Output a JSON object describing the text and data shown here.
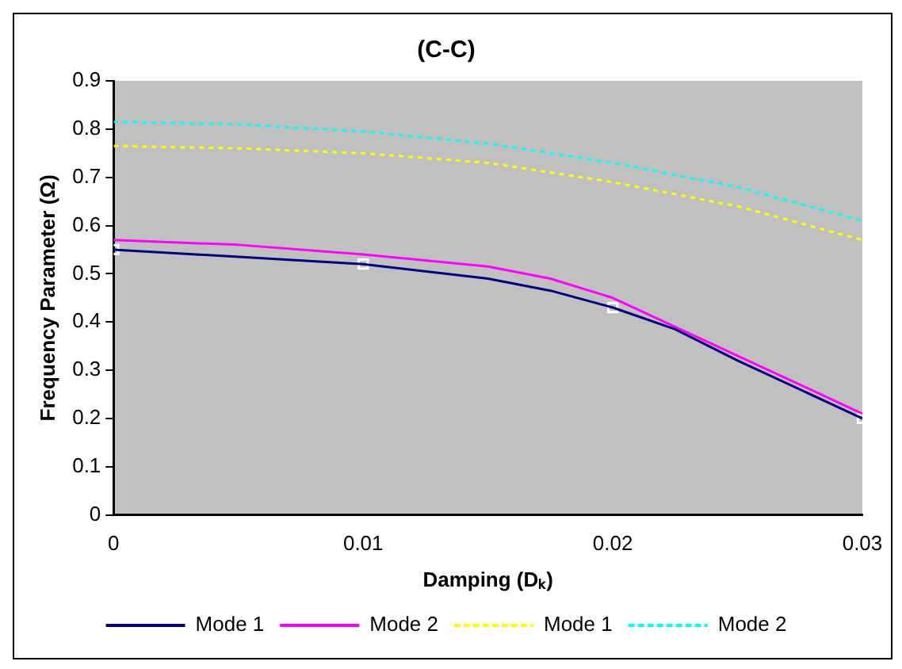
{
  "chart_data": {
    "type": "line",
    "title": "(C-C)",
    "xlabel": "Damping (Dₖ)",
    "ylabel": "Frequency Parameter (Ω)",
    "xlim": [
      0,
      0.03
    ],
    "xticks": [
      0,
      0.01,
      0.02,
      0.03
    ],
    "ylim": [
      0,
      0.9
    ],
    "yticks": [
      0,
      0.1,
      0.2,
      0.3,
      0.4,
      0.5,
      0.6,
      0.7,
      0.8,
      0.9
    ],
    "grid": false,
    "legend": "bottom",
    "marker": "none",
    "series": [
      {
        "name": "Mode 1",
        "color": "#000080",
        "line_style": "solid",
        "x": [
          0,
          0.005,
          0.01,
          0.015,
          0.0175,
          0.02,
          0.0225,
          0.025,
          0.03
        ],
        "values": [
          0.55,
          0.535,
          0.52,
          0.49,
          0.465,
          0.43,
          0.385,
          0.32,
          0.2
        ]
      },
      {
        "name": "Mode 2",
        "color": "#ff00ff",
        "line_style": "solid",
        "x": [
          0,
          0.005,
          0.01,
          0.015,
          0.0175,
          0.02,
          0.025,
          0.03
        ],
        "values": [
          0.57,
          0.56,
          0.54,
          0.515,
          0.49,
          0.45,
          0.33,
          0.21
        ]
      },
      {
        "name": "Mode 1",
        "color": "#ffff00",
        "line_style": "dotted",
        "x": [
          0,
          0.005,
          0.01,
          0.015,
          0.02,
          0.025,
          0.03
        ],
        "values": [
          0.765,
          0.76,
          0.75,
          0.73,
          0.69,
          0.64,
          0.57
        ]
      },
      {
        "name": "Mode 2",
        "color": "#00ffff",
        "line_style": "dotted",
        "x": [
          0,
          0.005,
          0.01,
          0.015,
          0.02,
          0.025,
          0.03
        ],
        "values": [
          0.815,
          0.81,
          0.795,
          0.77,
          0.73,
          0.68,
          0.61
        ]
      },
      {
        "type": "scatter",
        "color": "#ffffff",
        "marker": "square",
        "x": [
          0,
          0.01,
          0.02,
          0.03
        ],
        "values": [
          0.55,
          0.52,
          0.43,
          0.2
        ]
      }
    ]
  }
}
